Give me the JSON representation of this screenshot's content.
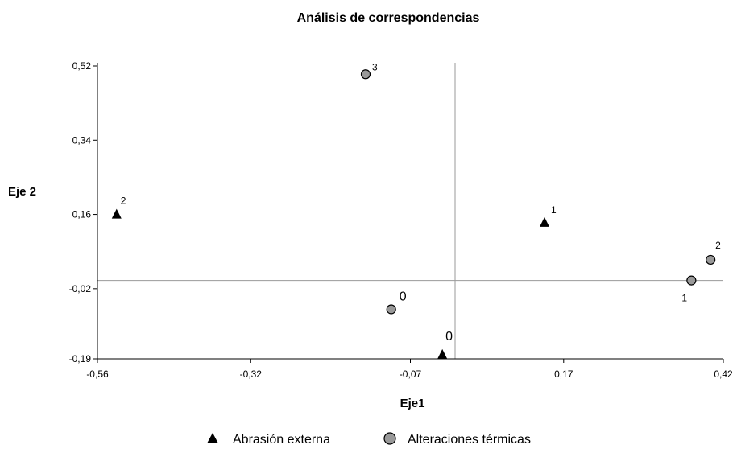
{
  "chart_data": {
    "type": "scatter",
    "title": "Análisis de correspondencias",
    "xlabel": "Eje1",
    "ylabel": "Eje 2",
    "xlim": [
      -0.56,
      0.42
    ],
    "ylim": [
      -0.19,
      0.52
    ],
    "x_ticks": [
      -0.56,
      -0.32,
      -0.07,
      0.17,
      0.42
    ],
    "y_ticks": [
      -0.19,
      -0.02,
      0.16,
      0.34,
      0.52
    ],
    "x_tick_labels": [
      "-0,56",
      "-0,32",
      "-0,07",
      "0,17",
      "0,42"
    ],
    "y_tick_labels": [
      "-0,19",
      "-0,02",
      "0,16",
      "0,34",
      "0,52"
    ],
    "reference_lines": {
      "x": 0.0,
      "y": 0.0
    },
    "grid": false,
    "legend_position": "bottom",
    "series": [
      {
        "name": "Abrasión externa",
        "marker": "triangle",
        "color": "#000000",
        "points": [
          {
            "x": -0.53,
            "y": 0.16,
            "label": "2"
          },
          {
            "x": 0.14,
            "y": 0.14,
            "label": "1"
          },
          {
            "x": -0.02,
            "y": -0.18,
            "label": "0"
          }
        ]
      },
      {
        "name": "Alteraciones térmicas",
        "marker": "circle",
        "color": "#999999",
        "points": [
          {
            "x": -0.14,
            "y": 0.5,
            "label": "3"
          },
          {
            "x": -0.1,
            "y": -0.07,
            "label": "0"
          },
          {
            "x": 0.4,
            "y": 0.05,
            "label": "2"
          },
          {
            "x": 0.37,
            "y": 0.0,
            "label": "1"
          }
        ]
      }
    ]
  }
}
